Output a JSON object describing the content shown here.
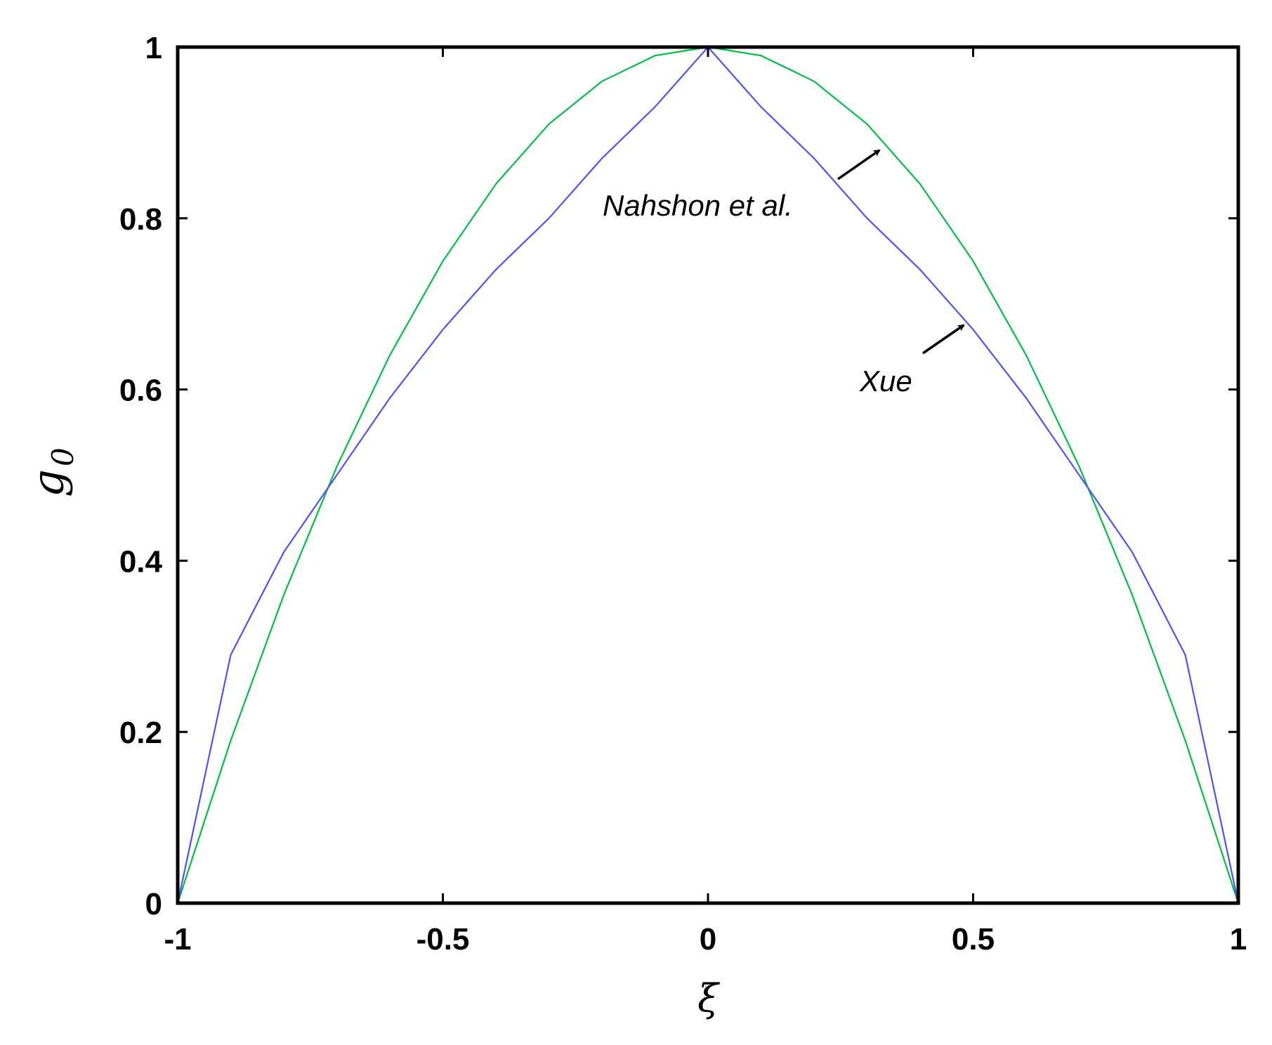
{
  "chart_data": {
    "type": "line",
    "title": "",
    "xlabel": "ξ",
    "ylabel": "g0",
    "ylabel_main": "g",
    "ylabel_sub": "0",
    "xlim": [
      -1,
      1
    ],
    "ylim": [
      0,
      1
    ],
    "grid": false,
    "legend": "none (inline annotations with arrows)",
    "x_ticks": [
      -1,
      -0.5,
      0,
      0.5,
      1
    ],
    "x_tick_labels": [
      "-1",
      "-0.5",
      "0",
      "0.5",
      "1"
    ],
    "y_ticks": [
      0,
      0.2,
      0.4,
      0.6,
      0.8,
      1
    ],
    "y_tick_labels": [
      "0",
      "0.2",
      "0.4",
      "0.6",
      "0.8",
      "1"
    ],
    "series": [
      {
        "name": "Nahshon et al.",
        "color": "#00c040",
        "x": [
          -1,
          -0.9,
          -0.8,
          -0.7,
          -0.6,
          -0.5,
          -0.4,
          -0.3,
          -0.2,
          -0.1,
          0,
          0.1,
          0.2,
          0.3,
          0.4,
          0.5,
          0.6,
          0.7,
          0.8,
          0.9,
          1
        ],
        "y": [
          0,
          0.19,
          0.36,
          0.51,
          0.64,
          0.75,
          0.84,
          0.91,
          0.96,
          0.99,
          1,
          0.99,
          0.96,
          0.91,
          0.84,
          0.75,
          0.64,
          0.51,
          0.36,
          0.19,
          0
        ]
      },
      {
        "name": "Xue",
        "color": "#5050ff",
        "x": [
          -1,
          -0.9,
          -0.8,
          -0.7,
          -0.6,
          -0.5,
          -0.4,
          -0.3,
          -0.2,
          -0.1,
          0,
          0.1,
          0.2,
          0.3,
          0.4,
          0.5,
          0.6,
          0.7,
          0.8,
          0.9,
          1
        ],
        "y": [
          0,
          0.29,
          0.41,
          0.5,
          0.59,
          0.67,
          0.74,
          0.8,
          0.87,
          0.93,
          1,
          0.93,
          0.87,
          0.8,
          0.74,
          0.67,
          0.59,
          0.5,
          0.41,
          0.29,
          0
        ]
      }
    ],
    "annotations": [
      {
        "text": "Nahshon et al.",
        "target_series": "Nahshon et al.",
        "arrow_to": [
          0.33,
          0.88
        ]
      },
      {
        "text": "Xue",
        "target_series": "Xue",
        "arrow_to": [
          0.5,
          0.67
        ]
      }
    ]
  }
}
